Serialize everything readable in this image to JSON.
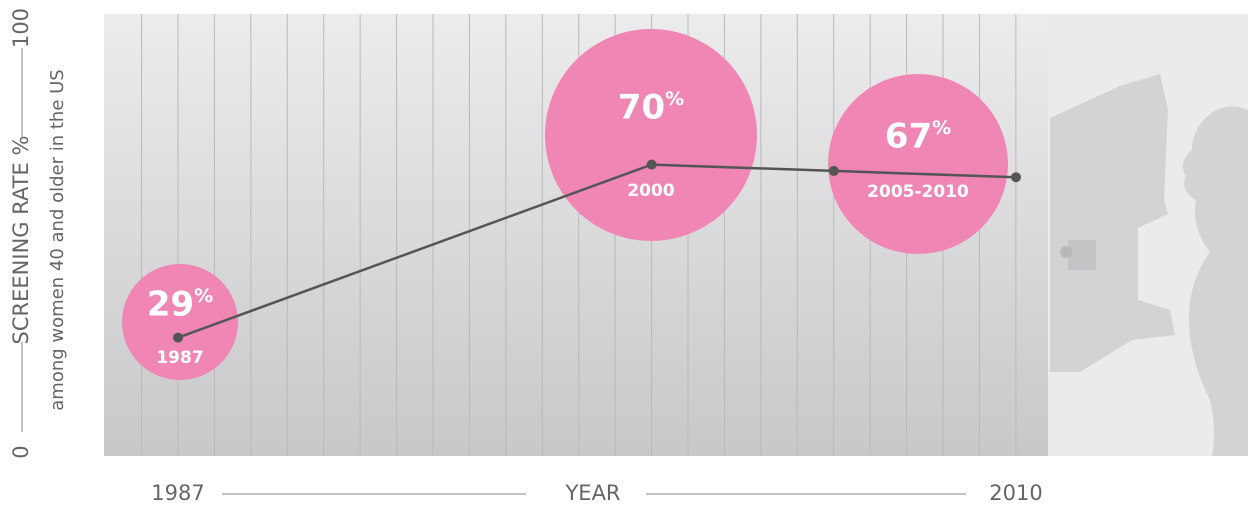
{
  "chart_data": {
    "type": "line",
    "x_axis_label": "YEAR",
    "y_axis_label": "SCREENING RATE %",
    "y_axis_sublabel": "among women 40 and older in the US",
    "x": [
      1987,
      2000,
      2005,
      2010
    ],
    "series": [
      {
        "name": "Screening rate",
        "color": "#555555",
        "values": [
          29,
          70,
          68.5,
          67
        ]
      }
    ],
    "bubbles": [
      {
        "label": "29%",
        "period": "1987"
      },
      {
        "label": "70%",
        "period": "2000"
      },
      {
        "label": "67%",
        "period": "2005-2010"
      }
    ],
    "bubble_color": "#ef86b4",
    "xlim": [
      1985,
      2011
    ],
    "ylim": [
      0,
      100
    ],
    "xticks": [
      1987,
      2010
    ],
    "yticks": [
      0,
      100
    ],
    "grid": true
  }
}
